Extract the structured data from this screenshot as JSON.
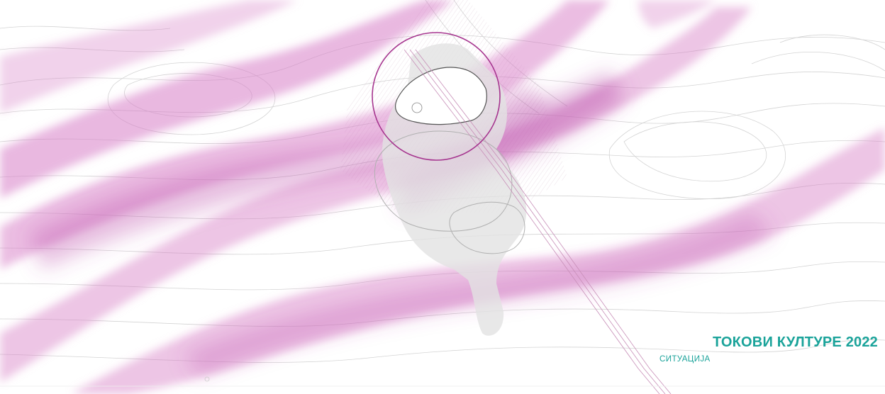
{
  "caption": {
    "title": "ТОКОВИ КУЛТУРЕ 2022",
    "subtitle": "СИТУАЦИЈА"
  },
  "colors": {
    "accent": "#1aa39a",
    "flow_band": "#d77ec6",
    "flow_band_dark": "#b94aa9",
    "site_ring": "#a6358f",
    "contour_line": "#cfcfcf",
    "building_fill": "#e2e2e2",
    "building_outline": "#555555"
  }
}
